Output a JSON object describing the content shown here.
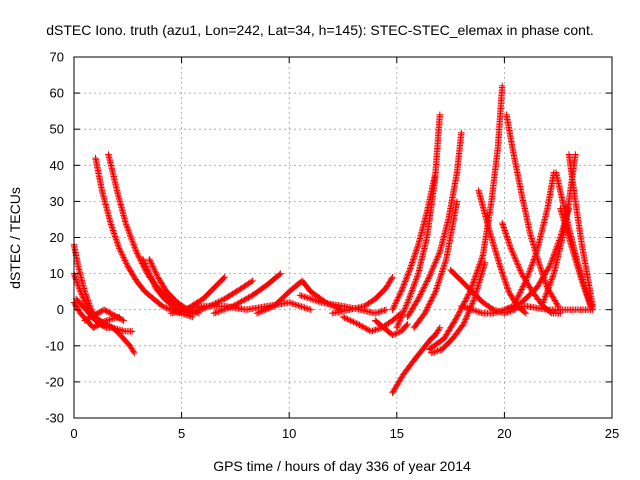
{
  "chart_data": {
    "type": "scatter",
    "title": "dSTEC Iono. truth (azu1, Lon=242, Lat=34, h=145): STEC-STEC_elemax in phase cont.",
    "xlabel": "GPS time / hours of day 336 of year 2014",
    "ylabel": "dSTEC  / TECUs",
    "xlim": [
      0,
      25
    ],
    "ylim": [
      -30,
      70
    ],
    "xticks": [
      0,
      5,
      10,
      15,
      20,
      25
    ],
    "yticks": [
      -30,
      -20,
      -10,
      0,
      10,
      20,
      30,
      40,
      50,
      60,
      70
    ],
    "grid": true,
    "marker": "+",
    "color": "#ff0000",
    "series": [
      {
        "x": [
          0.0,
          0.2,
          0.5,
          0.8,
          1.0,
          1.2,
          1.5,
          1.8,
          2.0,
          2.3,
          2.6,
          2.8
        ],
        "y": [
          18,
          12,
          5,
          0,
          -2,
          -3,
          -4,
          -5,
          -6,
          -8,
          -10,
          -12
        ]
      },
      {
        "x": [
          0.0,
          0.3,
          0.6,
          0.9,
          1.2,
          1.5,
          1.8,
          2.1,
          2.4,
          2.7
        ],
        "y": [
          10,
          5,
          1,
          -2,
          -4,
          -5,
          -5,
          -5.5,
          -6,
          -6
        ]
      },
      {
        "x": [
          0.0,
          0.3,
          0.6,
          0.9,
          1.2,
          1.5,
          1.8,
          2.1
        ],
        "y": [
          2,
          -1,
          -3,
          -5,
          -4,
          -3,
          -2.5,
          -2
        ]
      },
      {
        "x": [
          0.1,
          0.4,
          0.7,
          1.0,
          1.3
        ],
        "y": [
          3,
          1,
          -1,
          -3,
          -4
        ]
      },
      {
        "x": [
          0.5,
          0.8,
          1.1,
          1.4,
          1.7,
          2.0,
          2.3
        ],
        "y": [
          -3,
          -2,
          -1,
          0,
          -1,
          -2,
          -3
        ]
      },
      {
        "x": [
          1.0,
          1.3,
          1.7,
          2.1,
          2.5,
          2.9,
          3.3,
          3.7,
          4.1,
          4.5,
          4.9
        ],
        "y": [
          42,
          33,
          24,
          17,
          12,
          8,
          5,
          3,
          1,
          0,
          -1
        ]
      },
      {
        "x": [
          1.6,
          2.0,
          2.4,
          2.9,
          3.4,
          3.9,
          4.4,
          4.9,
          5.4
        ],
        "y": [
          43,
          33,
          24,
          16,
          10,
          6,
          3,
          1,
          -1
        ]
      },
      {
        "x": [
          3.2,
          3.5,
          3.8,
          4.2,
          4.6,
          5.0,
          5.5
        ],
        "y": [
          14,
          10,
          6,
          3,
          1,
          -1,
          -2
        ]
      },
      {
        "x": [
          3.5,
          3.9,
          4.3,
          4.8,
          5.3,
          5.8
        ],
        "y": [
          14,
          9,
          5,
          2,
          0,
          -1
        ]
      },
      {
        "x": [
          4.5,
          5.2,
          6.0,
          6.5,
          7.0
        ],
        "y": [
          -1,
          0,
          3,
          6,
          9
        ]
      },
      {
        "x": [
          5.5,
          6.3,
          7.0,
          7.8,
          8.3
        ],
        "y": [
          -1,
          1,
          3,
          6,
          8
        ]
      },
      {
        "x": [
          6.5,
          7.4,
          8.3,
          9.0,
          9.6
        ],
        "y": [
          -1,
          1,
          4,
          7,
          10
        ]
      },
      {
        "x": [
          5.0,
          6.0,
          7.0,
          8.0,
          9.0,
          10.0,
          11.0
        ],
        "y": [
          0,
          1,
          1,
          0,
          1,
          2,
          0
        ]
      },
      {
        "x": [
          8.5,
          9.3,
          10.0,
          10.6,
          11.0,
          11.7,
          12.4
        ],
        "y": [
          -1,
          1,
          5,
          8,
          5,
          2,
          0
        ]
      },
      {
        "x": [
          10.5,
          11.5,
          12.5,
          13.3,
          14.0,
          14.5
        ],
        "y": [
          4,
          2,
          1,
          0,
          -1,
          0
        ]
      },
      {
        "x": [
          12.0,
          12.8,
          13.5,
          14.0,
          14.5,
          14.8
        ],
        "y": [
          -1,
          0,
          1,
          3,
          6,
          9
        ]
      },
      {
        "x": [
          12.5,
          13.2,
          13.8,
          14.3,
          14.8,
          15.2
        ],
        "y": [
          -2,
          -4,
          -6,
          -5,
          -3,
          -1
        ]
      },
      {
        "x": [
          14.0,
          14.4,
          14.8,
          15.2,
          15.5
        ],
        "y": [
          -3,
          -5,
          -7,
          -6,
          -4
        ]
      },
      {
        "x": [
          14.8,
          15.3,
          15.8,
          16.2,
          16.6,
          16.8,
          17.0
        ],
        "y": [
          -23,
          -18,
          -14,
          -11,
          -8,
          -7,
          -5
        ]
      },
      {
        "x": [
          14.8,
          15.2,
          15.6,
          16.0,
          16.4,
          16.8,
          17.0
        ],
        "y": [
          0,
          5,
          11,
          18,
          27,
          38,
          54
        ]
      },
      {
        "x": [
          15.0,
          15.5,
          16.0,
          16.4,
          16.8
        ],
        "y": [
          -5,
          2,
          10,
          20,
          37
        ]
      },
      {
        "x": [
          15.5,
          16.0,
          16.5,
          17.0,
          17.4,
          17.8,
          18.0
        ],
        "y": [
          -2,
          3,
          9,
          16,
          25,
          38,
          49
        ]
      },
      {
        "x": [
          15.8,
          16.3,
          16.8,
          17.3,
          17.8
        ],
        "y": [
          -5,
          -1,
          5,
          14,
          30
        ]
      },
      {
        "x": [
          16.5,
          17.2,
          17.8,
          18.4,
          19.0,
          19.4,
          19.7,
          19.9
        ],
        "y": [
          -11,
          -8,
          -2,
          5,
          15,
          30,
          45,
          62
        ]
      },
      {
        "x": [
          16.6,
          17.1,
          17.6,
          18.1,
          18.6,
          19.1
        ],
        "y": [
          -12,
          -11,
          -8,
          -4,
          3,
          13
        ]
      },
      {
        "x": [
          17.5,
          18.0,
          18.5,
          19.0,
          19.5,
          20.0,
          20.5
        ],
        "y": [
          11,
          8,
          5,
          2,
          0,
          -1,
          0
        ]
      },
      {
        "x": [
          18.0,
          18.5,
          19.0,
          19.5,
          20.0,
          21.0,
          22.0,
          23.0,
          24.0
        ],
        "y": [
          1,
          0,
          -1,
          -1,
          0,
          1,
          0,
          0,
          0
        ]
      },
      {
        "x": [
          18.8,
          19.3,
          19.8,
          20.2,
          20.6,
          21.0
        ],
        "y": [
          33,
          22,
          12,
          5,
          1,
          -1
        ]
      },
      {
        "x": [
          19.9,
          20.3,
          20.8,
          21.3,
          21.8,
          22.2,
          22.6
        ],
        "y": [
          24,
          17,
          10,
          5,
          1,
          -1,
          -1
        ]
      },
      {
        "x": [
          20.1,
          20.4,
          20.8,
          21.2,
          21.6,
          22.0,
          22.5
        ],
        "y": [
          54,
          44,
          32,
          21,
          13,
          6,
          1
        ]
      },
      {
        "x": [
          20.5,
          21.0,
          21.5,
          22.0,
          22.3
        ],
        "y": [
          2,
          8,
          16,
          28,
          38
        ]
      },
      {
        "x": [
          20.0,
          20.8,
          21.5,
          22.1,
          22.6,
          23.0
        ],
        "y": [
          0,
          2,
          6,
          12,
          20,
          28
        ]
      },
      {
        "x": [
          21.8,
          22.3,
          22.7,
          23.0,
          23.3
        ],
        "y": [
          2,
          10,
          20,
          30,
          43
        ]
      },
      {
        "x": [
          22.4,
          22.9,
          23.4,
          23.8,
          24.1
        ],
        "y": [
          38,
          25,
          13,
          5,
          0
        ]
      },
      {
        "x": [
          22.6,
          23.1,
          23.6,
          24.0
        ],
        "y": [
          28,
          18,
          8,
          1
        ]
      },
      {
        "x": [
          23.0,
          23.3,
          23.6,
          23.9,
          24.1
        ],
        "y": [
          43,
          30,
          18,
          8,
          1
        ]
      }
    ]
  }
}
